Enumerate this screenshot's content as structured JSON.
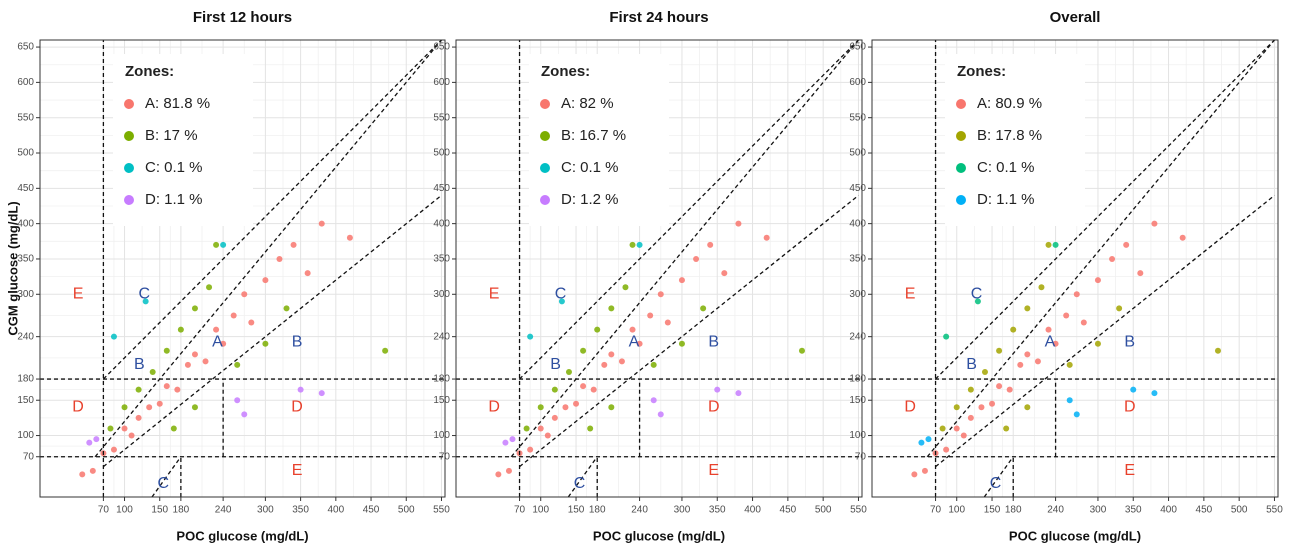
{
  "chart_data": [
    {
      "type": "scatter",
      "title": "First 12 hours",
      "xlabel": "POC glucose (mg/dL)",
      "ylabel": "CGM glucose (mg/dL)",
      "legend_title": "Zones:",
      "legend": "top-left",
      "grid": true,
      "xlim": [
        -20,
        555
      ],
      "ylim": [
        13,
        660
      ],
      "xticks": [
        70,
        100,
        150,
        180,
        240,
        300,
        350,
        400,
        450,
        500,
        550
      ],
      "yticks": [
        70,
        100,
        150,
        180,
        240,
        300,
        350,
        400,
        450,
        500,
        550,
        600,
        650
      ],
      "boundaries": [
        [
          70,
          13,
          70,
          660
        ],
        [
          -20,
          180,
          555,
          180
        ],
        [
          -20,
          70,
          555,
          70
        ],
        [
          70,
          180,
          550,
          660
        ],
        [
          58.3,
          70,
          550,
          660
        ],
        [
          70,
          56,
          550,
          440
        ],
        [
          240,
          70,
          240,
          180
        ],
        [
          180,
          13,
          180,
          70
        ],
        [
          139,
          13,
          180,
          70
        ]
      ],
      "zone_labels": [
        "E",
        "C",
        "B",
        "A",
        "B",
        "D",
        "D",
        "E",
        "C"
      ],
      "zone_label_colors": [
        "#e8412c",
        "#2e4fa0",
        "#2e4fa0",
        "#2e4fa0",
        "#2e4fa0",
        "#e8412c",
        "#e8412c",
        "#e8412c",
        "#2e4fa0"
      ],
      "series": [
        {
          "name": "A: 81.8 %",
          "color": "#f8766d",
          "x": [
            40,
            55,
            70,
            85,
            100,
            110,
            120,
            135,
            150,
            160,
            175,
            190,
            200,
            215,
            230,
            240,
            255,
            270,
            280,
            300,
            320,
            340,
            360,
            380,
            420
          ],
          "y": [
            45,
            50,
            75,
            80,
            110,
            100,
            125,
            140,
            145,
            170,
            165,
            200,
            215,
            205,
            250,
            230,
            270,
            300,
            260,
            320,
            350,
            370,
            330,
            400,
            380
          ]
        },
        {
          "name": "B: 17 %",
          "color": "#7cae00",
          "x": [
            80,
            100,
            120,
            140,
            160,
            180,
            200,
            220,
            230,
            170,
            200,
            260,
            300,
            330,
            470
          ],
          "y": [
            110,
            140,
            165,
            190,
            220,
            250,
            280,
            310,
            370,
            110,
            140,
            200,
            230,
            280,
            220
          ]
        },
        {
          "name": "C: 0.1 %",
          "color": "#00bfc4",
          "x": [
            85,
            130,
            240
          ],
          "y": [
            240,
            290,
            370
          ]
        },
        {
          "name": "D: 1.1 %",
          "color": "#c77cff",
          "x": [
            50,
            60,
            260,
            270,
            350,
            380
          ],
          "y": [
            90,
            95,
            150,
            130,
            165,
            160
          ]
        }
      ]
    },
    {
      "type": "scatter",
      "title": "First 24 hours",
      "xlabel": "POC glucose (mg/dL)",
      "legend_title": "Zones:",
      "legend": "top-left",
      "grid": true,
      "xlim": [
        -20,
        555
      ],
      "ylim": [
        13,
        660
      ],
      "xticks": [
        70,
        100,
        150,
        180,
        240,
        300,
        350,
        400,
        450,
        500,
        550
      ],
      "yticks": [
        70,
        100,
        150,
        180,
        240,
        300,
        350,
        400,
        450,
        500,
        550,
        600,
        650
      ],
      "boundaries": [
        [
          70,
          13,
          70,
          660
        ],
        [
          -20,
          180,
          555,
          180
        ],
        [
          -20,
          70,
          555,
          70
        ],
        [
          70,
          180,
          550,
          660
        ],
        [
          58.3,
          70,
          550,
          660
        ],
        [
          70,
          56,
          550,
          440
        ],
        [
          240,
          70,
          240,
          180
        ],
        [
          180,
          13,
          180,
          70
        ],
        [
          139,
          13,
          180,
          70
        ]
      ],
      "zone_labels": [
        "E",
        "C",
        "B",
        "A",
        "B",
        "D",
        "D",
        "E",
        "C"
      ],
      "zone_label_colors": [
        "#e8412c",
        "#2e4fa0",
        "#2e4fa0",
        "#2e4fa0",
        "#2e4fa0",
        "#e8412c",
        "#e8412c",
        "#e8412c",
        "#2e4fa0"
      ],
      "series": [
        {
          "name": "A: 82 %",
          "color": "#f8766d",
          "x": [
            40,
            55,
            70,
            85,
            100,
            110,
            120,
            135,
            150,
            160,
            175,
            190,
            200,
            215,
            230,
            240,
            255,
            270,
            280,
            300,
            320,
            340,
            360,
            380,
            420
          ],
          "y": [
            45,
            50,
            75,
            80,
            110,
            100,
            125,
            140,
            145,
            170,
            165,
            200,
            215,
            205,
            250,
            230,
            270,
            300,
            260,
            320,
            350,
            370,
            330,
            400,
            380
          ]
        },
        {
          "name": "B: 16.7 %",
          "color": "#7cae00",
          "x": [
            80,
            100,
            120,
            140,
            160,
            180,
            200,
            220,
            230,
            170,
            200,
            260,
            300,
            330,
            470
          ],
          "y": [
            110,
            140,
            165,
            190,
            220,
            250,
            280,
            310,
            370,
            110,
            140,
            200,
            230,
            280,
            220
          ]
        },
        {
          "name": "C: 0.1 %",
          "color": "#00bfc4",
          "x": [
            85,
            130,
            240
          ],
          "y": [
            240,
            290,
            370
          ]
        },
        {
          "name": "D: 1.2 %",
          "color": "#c77cff",
          "x": [
            50,
            60,
            260,
            270,
            350,
            380
          ],
          "y": [
            90,
            95,
            150,
            130,
            165,
            160
          ]
        }
      ]
    },
    {
      "type": "scatter",
      "title": "Overall",
      "xlabel": "POC glucose (mg/dL)",
      "legend_title": "Zones:",
      "legend": "top-left",
      "grid": true,
      "xlim": [
        -20,
        555
      ],
      "ylim": [
        13,
        660
      ],
      "xticks": [
        70,
        100,
        150,
        180,
        240,
        300,
        350,
        400,
        450,
        500,
        550
      ],
      "yticks": [
        70,
        100,
        150,
        180,
        240,
        300,
        350,
        400,
        450,
        500,
        550,
        600,
        650
      ],
      "boundaries": [
        [
          70,
          13,
          70,
          660
        ],
        [
          -20,
          180,
          555,
          180
        ],
        [
          -20,
          70,
          555,
          70
        ],
        [
          70,
          180,
          550,
          660
        ],
        [
          58.3,
          70,
          550,
          660
        ],
        [
          70,
          56,
          550,
          440
        ],
        [
          240,
          70,
          240,
          180
        ],
        [
          180,
          13,
          180,
          70
        ],
        [
          139,
          13,
          180,
          70
        ]
      ],
      "zone_labels": [
        "E",
        "C",
        "B",
        "A",
        "B",
        "D",
        "D",
        "E",
        "C"
      ],
      "zone_label_colors": [
        "#e8412c",
        "#2e4fa0",
        "#2e4fa0",
        "#2e4fa0",
        "#2e4fa0",
        "#e8412c",
        "#e8412c",
        "#e8412c",
        "#2e4fa0"
      ],
      "series": [
        {
          "name": "A: 80.9 %",
          "color": "#f8766d",
          "x": [
            40,
            55,
            70,
            85,
            100,
            110,
            120,
            135,
            150,
            160,
            175,
            190,
            200,
            215,
            230,
            240,
            255,
            270,
            280,
            300,
            320,
            340,
            360,
            380,
            420
          ],
          "y": [
            45,
            50,
            75,
            80,
            110,
            100,
            125,
            140,
            145,
            170,
            165,
            200,
            215,
            205,
            250,
            230,
            270,
            300,
            260,
            320,
            350,
            370,
            330,
            400,
            380
          ]
        },
        {
          "name": "B: 17.8 %",
          "color": "#a3a500",
          "x": [
            80,
            100,
            120,
            140,
            160,
            180,
            200,
            220,
            230,
            170,
            200,
            260,
            300,
            330,
            470
          ],
          "y": [
            110,
            140,
            165,
            190,
            220,
            250,
            280,
            310,
            370,
            110,
            140,
            200,
            230,
            280,
            220
          ]
        },
        {
          "name": "C: 0.1 %",
          "color": "#00bf7d",
          "x": [
            85,
            130,
            240
          ],
          "y": [
            240,
            290,
            370
          ]
        },
        {
          "name": "D: 1.1 %",
          "color": "#00b0f6",
          "x": [
            50,
            60,
            260,
            270,
            350,
            380
          ],
          "y": [
            90,
            95,
            150,
            130,
            165,
            160
          ]
        }
      ]
    }
  ]
}
